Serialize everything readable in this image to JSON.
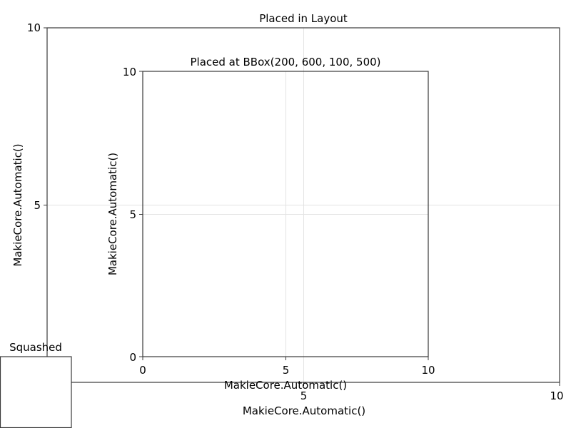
{
  "chart_data": [
    {
      "id": "layout",
      "type": "scatter",
      "title": "Placed in Layout",
      "xlabel": "MakieCore.Automatic()",
      "ylabel": "MakieCore.Automatic()",
      "xlim": [
        0,
        10
      ],
      "ylim": [
        0,
        10
      ],
      "xticks": [
        "0",
        "5",
        "10"
      ],
      "yticks": [
        "0",
        "5",
        "10"
      ],
      "grid": true,
      "series": []
    },
    {
      "id": "bbox",
      "type": "scatter",
      "title": "Placed at BBox(200, 600, 100, 500)",
      "xlabel": "MakieCore.Automatic()",
      "ylabel": "MakieCore.Automatic()",
      "xlim": [
        0,
        10
      ],
      "ylim": [
        0,
        10
      ],
      "xticks": [
        "0",
        "5",
        "10"
      ],
      "yticks": [
        "0",
        "5",
        "10"
      ],
      "grid": true,
      "series": []
    },
    {
      "id": "squashed",
      "type": "scatter",
      "title": "Squashed",
      "grid": false,
      "series": []
    }
  ]
}
